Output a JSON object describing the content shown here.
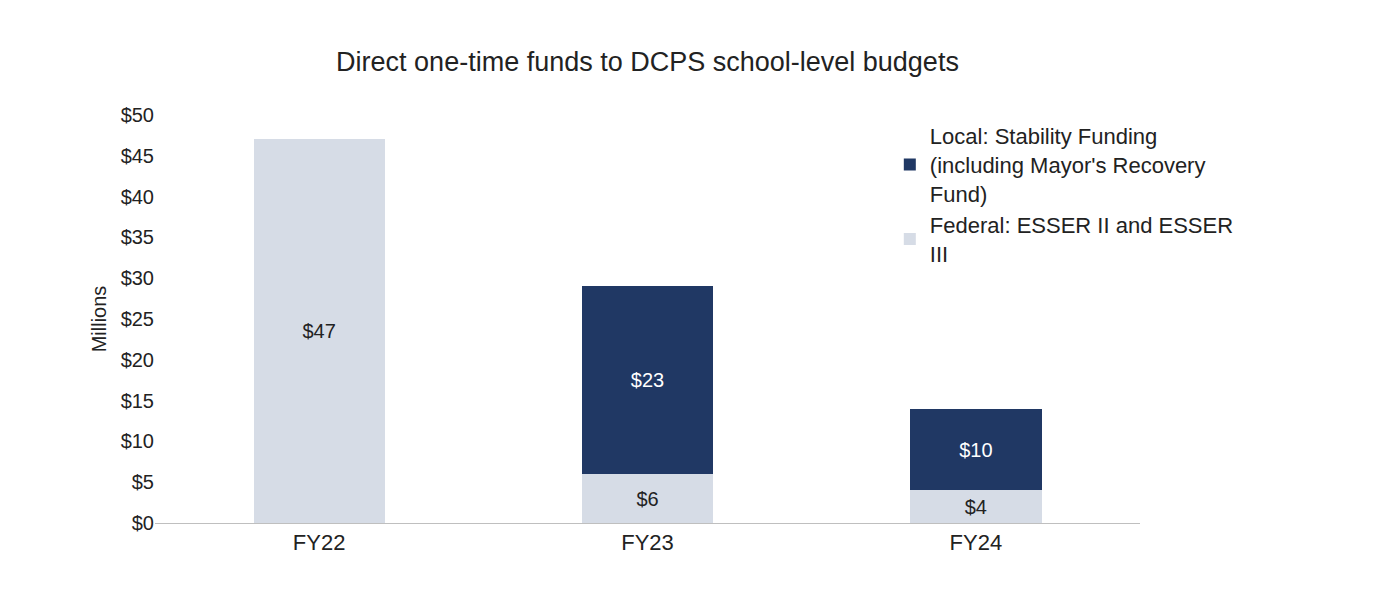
{
  "chart_data": {
    "type": "bar",
    "title": "Direct one-time funds to DCPS school-level budgets",
    "ylabel": "Millions",
    "categories": [
      "FY22",
      "FY23",
      "FY24"
    ],
    "series": [
      {
        "name": "Federal: ESSER II and ESSER III",
        "color": "#d6dce6",
        "values": [
          47,
          6,
          4
        ],
        "value_labels": [
          "$47",
          "$6",
          "$4"
        ]
      },
      {
        "name": "Local: Stability Funding (including Mayor's Recovery Fund)",
        "color": "#203864",
        "values": [
          null,
          23,
          10
        ],
        "value_labels": [
          null,
          "$23",
          "$10"
        ]
      }
    ],
    "ylim": [
      0,
      50
    ],
    "yticks": [
      {
        "value": 0,
        "label": "$0"
      },
      {
        "value": 5,
        "label": "$5"
      },
      {
        "value": 10,
        "label": "$10"
      },
      {
        "value": 15,
        "label": "$15"
      },
      {
        "value": 20,
        "label": "$20"
      },
      {
        "value": 25,
        "label": "$25"
      },
      {
        "value": 30,
        "label": "$30"
      },
      {
        "value": 35,
        "label": "$35"
      },
      {
        "value": 40,
        "label": "$40"
      },
      {
        "value": 45,
        "label": "$45"
      },
      {
        "value": 50,
        "label": "$50"
      }
    ],
    "stacked": true,
    "data_labels": true,
    "grid": false,
    "legend": "upper right"
  }
}
